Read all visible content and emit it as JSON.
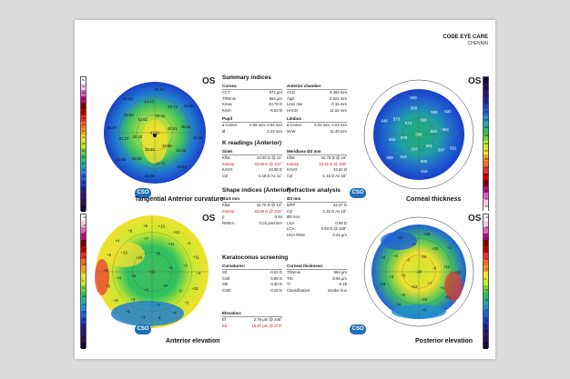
{
  "header": {
    "title": "CODE EYE CARE",
    "subtitle": "CHENNAI"
  },
  "maps": {
    "tangential": {
      "label": "Tangential Anterior curvature",
      "eye": "OS",
      "values": [
        "41.81",
        "40.34",
        "42.91",
        "43.89",
        "43.43",
        "42.42",
        "42.82",
        "42.74",
        "45.52",
        "43.33",
        "43.71",
        "42.56",
        "41.27",
        "42.86",
        "44.47",
        "42.95",
        "42.34",
        "44.94",
        "43.36",
        "42.86",
        "40.47",
        "42.62",
        "41.57"
      ]
    },
    "thickness": {
      "label": "Corneal thickness",
      "eye": "OS",
      "values": [
        "588",
        "599",
        "600",
        "601",
        "626",
        "579",
        "574",
        "565",
        "584",
        "587",
        "609",
        "615",
        "564",
        "573",
        "580",
        "620",
        "631",
        "616",
        "589",
        "648",
        "599"
      ]
    },
    "anterior_elevation": {
      "label": "Anterior elevation",
      "eye": "OS",
      "values": [
        "+22",
        "+8",
        "+1",
        "+0",
        "+2",
        "+6",
        "+15",
        "+11",
        "+2",
        "-5",
        "-7",
        "+3",
        "+4",
        "+13",
        "+7",
        "-4",
        "+11",
        "+4",
        "+21",
        "+1",
        "+4",
        "-3",
        "+3",
        "+1",
        "+9",
        "+3",
        "+6",
        "+6",
        "+4",
        "+6",
        "+5",
        "+13",
        "+12"
      ]
    },
    "posterior_elevation": {
      "label": "Posterior elevation",
      "eye": "OS",
      "values": [
        "-29",
        "-16",
        "-3",
        "+7",
        "+23",
        "+2",
        "-3",
        "+10",
        "+12",
        "+1",
        "+15",
        "+8",
        "+4",
        "+4",
        "+1",
        "+4",
        "+10",
        "+12",
        "+6",
        "+4",
        "+18",
        "+3",
        "+17",
        "+25"
      ]
    },
    "cso_label": "CSO"
  },
  "summary": {
    "title": "Summary indices",
    "cornea": {
      "title": "Cornea",
      "rows": [
        [
          "CCT",
          "572 µm"
        ],
        [
          "ThNmin",
          "564 µm"
        ],
        [
          "Kmax",
          "43.79 D"
        ],
        [
          "Kmin",
          "-6.53 D"
        ]
      ]
    },
    "pupil": {
      "title": "Pupil",
      "rows": [
        [
          "♦ Center",
          "0.09 mm; 0.03 mm"
        ],
        [
          "Ø",
          "3.23 mm"
        ]
      ]
    },
    "anterior_chamber": {
      "title": "Anterior chamber",
      "rows": [
        [
          "ACD",
          "3.493 mm"
        ],
        [
          "AqD",
          "2.921 mm"
        ],
        [
          "Lens rise",
          "-0.15 mm"
        ],
        [
          "HACD",
          "11.62 mm"
        ]
      ]
    },
    "limbus": {
      "title": "Limbus",
      "rows": [
        [
          "♦ Center",
          "0.03 mm; 0.03 mm"
        ],
        [
          "W-W",
          "11.40 mm"
        ]
      ]
    }
  },
  "k_readings": {
    "title": "K readings (Anterior)",
    "simk": {
      "title": "SimK",
      "rows": [
        [
          "Kflat",
          "42.50 D @ 11°"
        ],
        [
          "Ksteep",
          "43.68 D @ 101°"
        ],
        [
          "KAVG",
          "43.08 D"
        ],
        [
          "Cyl",
          "-1.18 D Ax 11°"
        ]
      ]
    },
    "meridians": {
      "title": "Meridians Ø3 mm",
      "rows": [
        [
          "Kflat",
          "42.75 D @ 16°"
        ],
        [
          "Ksteep",
          "43.91 D @ 106°"
        ],
        [
          "KAVG",
          "43.32 D"
        ],
        [
          "Cyl",
          "-1.16 D Ax 16°"
        ]
      ]
    }
  },
  "shape": {
    "title": "Shape indices (Anterior)",
    "sub": "Ø4.5 mm",
    "rows": [
      [
        "Kflat",
        "42.70 D @ 13°"
      ],
      [
        "Ksteep",
        "43.89 D @ 103°"
      ],
      [
        "p",
        "0.84"
      ],
      [
        "RMS/A",
        "0.02 µm/mm²"
      ]
    ]
  },
  "refractive": {
    "title": "Refractive analysis",
    "sub": "Ø3 mm",
    "rows": [
      [
        "MPP",
        "42.37 D"
      ],
      [
        "Cyl",
        "-1.22 D Ax 18°"
      ],
      [
        "Ø5 mm",
        ""
      ],
      [
        "LSA",
        "0.94 D"
      ],
      [
        "LCA",
        "0.93 D @ 328°"
      ],
      [
        "HOA RMS",
        "0.24 µm"
      ]
    ]
  },
  "keratoconus": {
    "title": "Keratoconus screening",
    "curvature": {
      "title": "Curvatures:",
      "rows": [
        [
          "SIf",
          "-0.02 D"
        ],
        [
          "CSIf",
          "0.89 D"
        ],
        [
          "SIb",
          "0.30 D"
        ],
        [
          "CSIb",
          "0.28 D"
        ]
      ]
    },
    "thickness": {
      "title": "Corneal thickness:",
      "rows": [
        [
          "ThNmin",
          "564 µm"
        ],
        [
          "TSI",
          "8.59 µm"
        ],
        [
          "TI",
          "-0.25"
        ],
        [
          "Classification",
          "Border line"
        ]
      ]
    },
    "elevation": {
      "title": "Elevation:",
      "rows": [
        [
          "Ef",
          "2.75 µm @ 245°"
        ],
        [
          "Eb",
          "15.87 µm @ 273°"
        ]
      ]
    }
  },
  "scale_labels": {
    "curv": [
      "50",
      "49",
      "48",
      "47",
      "46",
      "45",
      "44",
      "43",
      "42",
      "41",
      "40",
      "39",
      "38",
      "37",
      "36",
      "35",
      "34",
      "33",
      "32",
      "31",
      "30"
    ],
    "thick": [
      "800",
      "775",
      "750",
      "725",
      "700",
      "675",
      "650",
      "625",
      "600",
      "575",
      "550",
      "525",
      "500",
      "475",
      "450",
      "425",
      "400"
    ],
    "elev_a": [
      "+40",
      "+35",
      "+30",
      "+25",
      "+20",
      "+15",
      "+10",
      "+5",
      "0",
      "-5",
      "-10",
      "-15",
      "-20",
      "-25",
      "-30",
      "-35",
      "-40"
    ],
    "elev_p": [
      "+60",
      "+50",
      "+40",
      "+30",
      "+20",
      "+10",
      "0",
      "-10",
      "-20",
      "-30",
      "-40",
      "-50",
      "-60"
    ]
  },
  "colors": {
    "map_blue": "#1a3fc8",
    "map_green": "#29c34a",
    "map_yellow": "#f0e23a",
    "map_red": "#e02020",
    "accent_red": "#d02020"
  }
}
